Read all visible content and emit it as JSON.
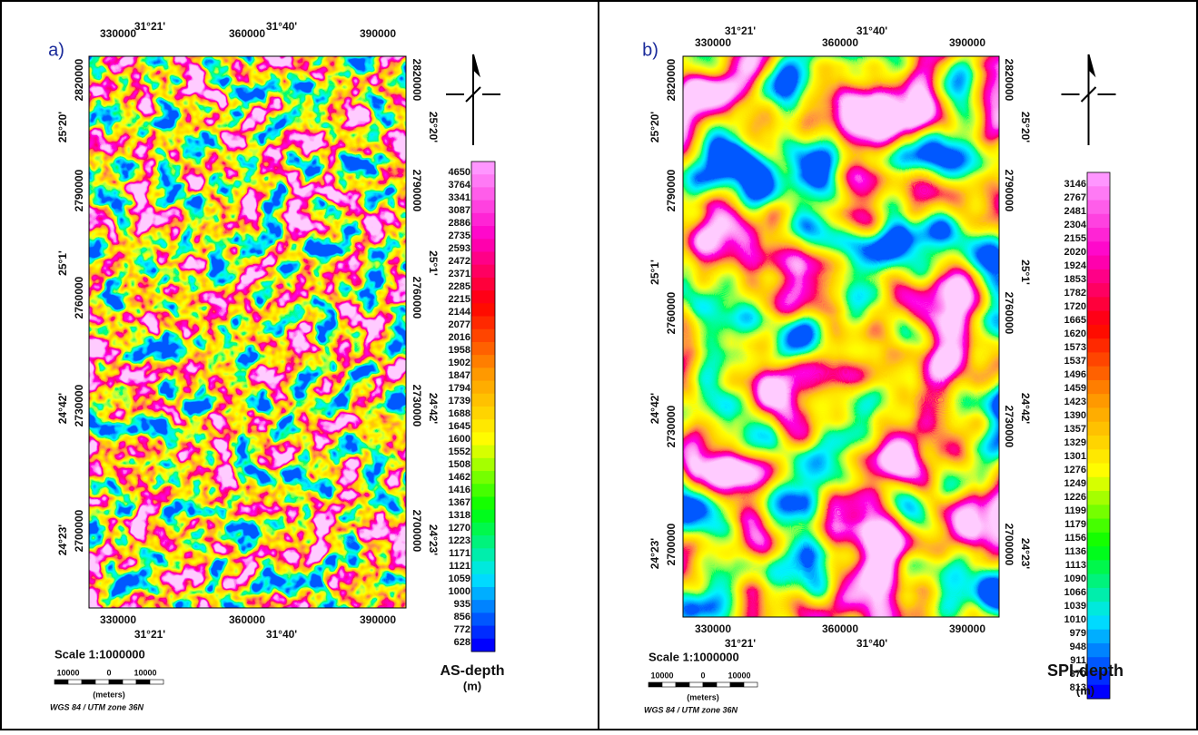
{
  "panels": [
    {
      "label": "a)",
      "top_lon": [
        "31°21'",
        "31°40'"
      ],
      "top_x": [
        330000,
        360000,
        390000
      ],
      "bottom_x": [
        330000,
        360000,
        390000
      ],
      "bottom_lon": [
        "31°21'",
        "31°40'"
      ],
      "left_y": [
        2820000,
        2790000,
        2760000,
        2730000,
        2700000
      ],
      "left_lat": [
        "25°20'",
        "25°1'",
        "24°42'",
        "24°23'"
      ],
      "right_y": [
        2820000,
        2790000,
        2760000,
        2730000,
        2700000
      ],
      "right_lat": [
        "25°20'",
        "25°1'",
        "24°42'",
        "24°23'"
      ],
      "scale": "Scale 1:1000000",
      "scale_bar": [
        10000,
        0,
        10000
      ],
      "scale_unit": "(meters)",
      "projection": "WGS 84 / UTM zone 36N",
      "legend": {
        "title": "AS-depth",
        "unit": "(m)",
        "values": [
          4650,
          3764,
          3341,
          3087,
          2886,
          2735,
          2593,
          2472,
          2371,
          2285,
          2215,
          2144,
          2077,
          2016,
          1958,
          1902,
          1847,
          1794,
          1739,
          1688,
          1645,
          1600,
          1552,
          1508,
          1462,
          1416,
          1367,
          1318,
          1270,
          1223,
          1171,
          1121,
          1059,
          1000,
          935,
          856,
          772,
          628
        ]
      }
    },
    {
      "label": "b)",
      "top_lon": [
        "31°21'",
        "31°40'"
      ],
      "top_x": [
        330000,
        360000,
        390000
      ],
      "bottom_x": [
        330000,
        360000,
        390000
      ],
      "bottom_lon": [
        "31°21'",
        "31°40'"
      ],
      "left_y": [
        2820000,
        2790000,
        2760000,
        2730000,
        2700000
      ],
      "left_lat": [
        "25°20'",
        "25°1'",
        "24°42'",
        "24°23'"
      ],
      "right_y": [
        2820000,
        2790000,
        2760000,
        2730000,
        2700000
      ],
      "right_lat": [
        "25°20'",
        "25°1'",
        "24°42'",
        "24°23'"
      ],
      "scale": "Scale 1:1000000",
      "scale_bar": [
        10000,
        0,
        10000
      ],
      "scale_unit": "(meters)",
      "projection": "WGS 84 / UTM zone 36N",
      "legend": {
        "title": "SPI-depth",
        "unit": "(m)",
        "values": [
          3146,
          2767,
          2481,
          2304,
          2155,
          2020,
          1924,
          1853,
          1782,
          1720,
          1665,
          1620,
          1573,
          1537,
          1496,
          1459,
          1423,
          1390,
          1357,
          1329,
          1301,
          1276,
          1249,
          1226,
          1199,
          1179,
          1156,
          1136,
          1113,
          1090,
          1066,
          1039,
          1010,
          979,
          948,
          911,
          870,
          813
        ]
      }
    }
  ]
}
